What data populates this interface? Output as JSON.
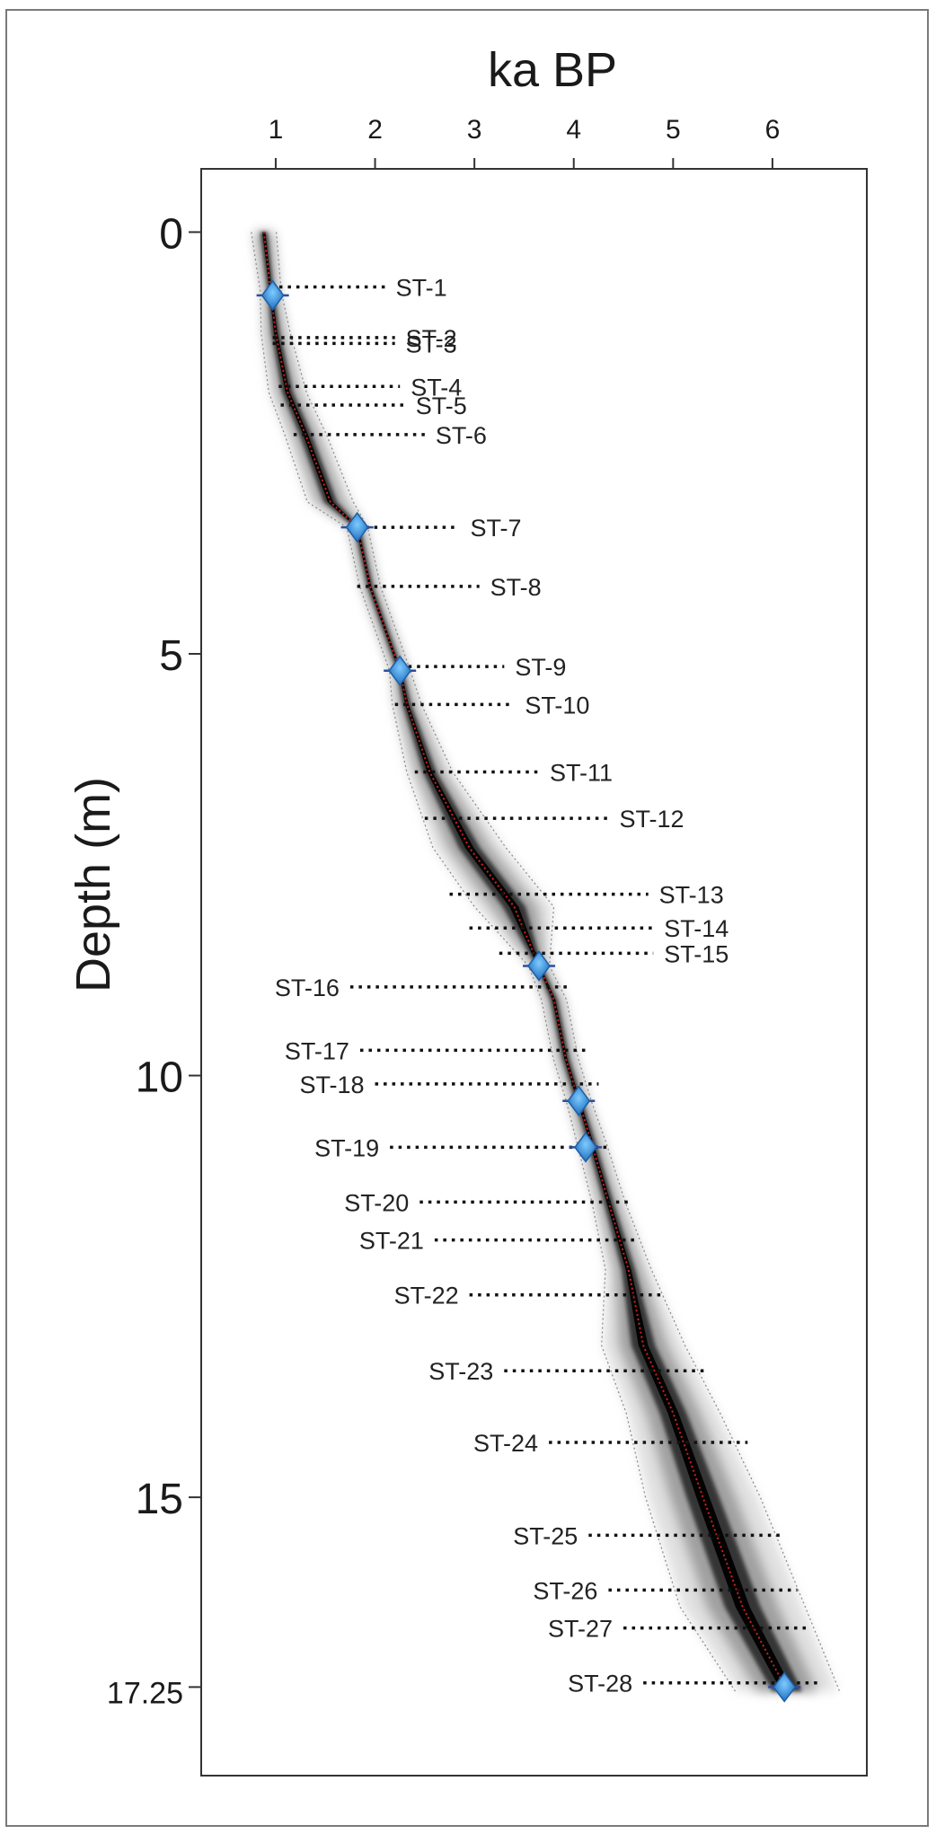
{
  "chart_data": {
    "type": "line",
    "title": "",
    "xlabel": "ka BP",
    "ylabel": "Depth (m)",
    "xlim": [
      0.25,
      6.95
    ],
    "ylim": [
      -0.75,
      18.3
    ],
    "x_ticks": [
      1,
      2,
      3,
      4,
      5,
      6
    ],
    "x_tick_labels": [
      "1",
      "2",
      "3",
      "4",
      "5",
      "6"
    ],
    "y_ticks": [
      0,
      5,
      10,
      15,
      17.25
    ],
    "y_tick_labels": [
      "0",
      "5",
      "10",
      "15",
      "17.25"
    ],
    "x_axis_position": "top",
    "grid": false,
    "age_depth_model": {
      "depth": [
        0,
        0.7,
        1.2,
        1.9,
        2.4,
        3.2,
        3.5,
        4.2,
        5.2,
        5.6,
        6.4,
        7.3,
        8.0,
        8.7,
        9.1,
        9.8,
        10.3,
        10.8,
        11.5,
        12.3,
        13.2,
        14.0,
        15.0,
        16.3,
        17.3
      ],
      "age": [
        0.88,
        0.95,
        1.0,
        1.12,
        1.3,
        1.55,
        1.82,
        1.95,
        2.25,
        2.32,
        2.55,
        2.95,
        3.4,
        3.65,
        3.8,
        3.92,
        4.05,
        4.18,
        4.35,
        4.55,
        4.7,
        5.0,
        5.3,
        5.7,
        6.15
      ],
      "spread": [
        0.12,
        0.1,
        0.14,
        0.18,
        0.2,
        0.22,
        0.1,
        0.1,
        0.1,
        0.14,
        0.22,
        0.35,
        0.38,
        0.1,
        0.12,
        0.12,
        0.12,
        0.14,
        0.16,
        0.22,
        0.4,
        0.45,
        0.55,
        0.6,
        0.5
      ]
    },
    "dated_points": [
      {
        "depth": 0.75,
        "age": 0.97
      },
      {
        "depth": 3.5,
        "age": 1.82
      },
      {
        "depth": 5.2,
        "age": 2.25
      },
      {
        "depth": 8.7,
        "age": 3.65
      },
      {
        "depth": 10.3,
        "age": 4.05
      },
      {
        "depth": 10.85,
        "age": 4.12
      },
      {
        "depth": 17.25,
        "age": 6.12
      }
    ],
    "samples": [
      {
        "label": "ST-1",
        "depth": 0.65,
        "x_start": 0.95,
        "x_end": 2.1,
        "side": "right"
      },
      {
        "label": "ST-2",
        "depth": 1.25,
        "x_start": 0.97,
        "x_end": 2.2,
        "side": "right"
      },
      {
        "label": "ST-3",
        "depth": 1.32,
        "x_start": 0.97,
        "x_end": 2.2,
        "side": "right"
      },
      {
        "label": "ST-4",
        "depth": 1.83,
        "x_start": 1.03,
        "x_end": 2.25,
        "side": "right"
      },
      {
        "label": "ST-5",
        "depth": 2.05,
        "x_start": 1.05,
        "x_end": 2.3,
        "side": "right"
      },
      {
        "label": "ST-6",
        "depth": 2.4,
        "x_start": 1.18,
        "x_end": 2.5,
        "side": "right"
      },
      {
        "label": "ST-7",
        "depth": 3.5,
        "x_start": 1.82,
        "x_end": 2.85,
        "side": "right"
      },
      {
        "label": "ST-8",
        "depth": 4.2,
        "x_start": 1.82,
        "x_end": 3.05,
        "side": "right"
      },
      {
        "label": "ST-9",
        "depth": 5.15,
        "x_start": 2.25,
        "x_end": 3.3,
        "side": "right"
      },
      {
        "label": "ST-10",
        "depth": 5.6,
        "x_start": 2.2,
        "x_end": 3.4,
        "side": "right"
      },
      {
        "label": "ST-11",
        "depth": 6.4,
        "x_start": 2.4,
        "x_end": 3.65,
        "side": "right"
      },
      {
        "label": "ST-12",
        "depth": 6.95,
        "x_start": 2.5,
        "x_end": 4.35,
        "side": "right"
      },
      {
        "label": "ST-13",
        "depth": 7.85,
        "x_start": 2.75,
        "x_end": 4.75,
        "side": "right"
      },
      {
        "label": "ST-14",
        "depth": 8.25,
        "x_start": 2.95,
        "x_end": 4.8,
        "side": "right"
      },
      {
        "label": "ST-15",
        "depth": 8.55,
        "x_start": 3.25,
        "x_end": 4.8,
        "side": "right"
      },
      {
        "label": "ST-16",
        "depth": 8.95,
        "x_start": 1.75,
        "x_end": 3.95,
        "side": "left"
      },
      {
        "label": "ST-17",
        "depth": 9.7,
        "x_start": 1.85,
        "x_end": 4.15,
        "side": "left"
      },
      {
        "label": "ST-18",
        "depth": 10.1,
        "x_start": 2.0,
        "x_end": 4.25,
        "side": "left"
      },
      {
        "label": "ST-19",
        "depth": 10.85,
        "x_start": 2.15,
        "x_end": 4.35,
        "side": "left"
      },
      {
        "label": "ST-20",
        "depth": 11.5,
        "x_start": 2.45,
        "x_end": 4.55,
        "side": "left"
      },
      {
        "label": "ST-21",
        "depth": 11.95,
        "x_start": 2.6,
        "x_end": 4.65,
        "side": "left"
      },
      {
        "label": "ST-22",
        "depth": 12.6,
        "x_start": 2.95,
        "x_end": 4.9,
        "side": "left"
      },
      {
        "label": "ST-23",
        "depth": 13.5,
        "x_start": 3.3,
        "x_end": 5.35,
        "side": "left"
      },
      {
        "label": "ST-24",
        "depth": 14.35,
        "x_start": 3.75,
        "x_end": 5.75,
        "side": "left"
      },
      {
        "label": "ST-25",
        "depth": 15.45,
        "x_start": 4.15,
        "x_end": 6.1,
        "side": "left"
      },
      {
        "label": "ST-26",
        "depth": 16.1,
        "x_start": 4.35,
        "x_end": 6.25,
        "side": "left"
      },
      {
        "label": "ST-27",
        "depth": 16.55,
        "x_start": 4.5,
        "x_end": 6.35,
        "side": "left"
      },
      {
        "label": "ST-28",
        "depth": 17.2,
        "x_start": 4.7,
        "x_end": 6.45,
        "side": "left"
      }
    ]
  }
}
